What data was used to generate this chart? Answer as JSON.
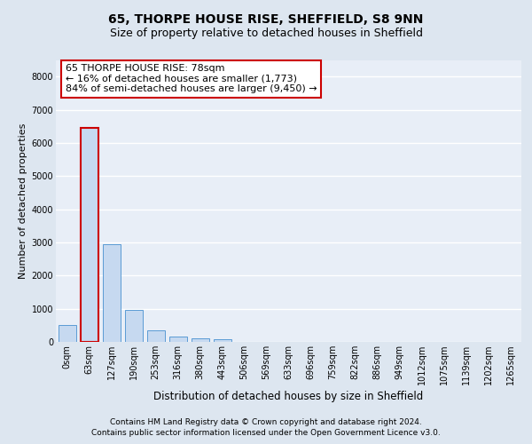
{
  "title1": "65, THORPE HOUSE RISE, SHEFFIELD, S8 9NN",
  "title2": "Size of property relative to detached houses in Sheffield",
  "xlabel": "Distribution of detached houses by size in Sheffield",
  "ylabel": "Number of detached properties",
  "bin_labels": [
    "0sqm",
    "63sqm",
    "127sqm",
    "190sqm",
    "253sqm",
    "316sqm",
    "380sqm",
    "443sqm",
    "506sqm",
    "569sqm",
    "633sqm",
    "696sqm",
    "759sqm",
    "822sqm",
    "886sqm",
    "949sqm",
    "1012sqm",
    "1075sqm",
    "1139sqm",
    "1202sqm",
    "1265sqm"
  ],
  "bar_heights": [
    500,
    6450,
    2950,
    975,
    340,
    165,
    100,
    80,
    0,
    0,
    0,
    0,
    0,
    0,
    0,
    0,
    0,
    0,
    0,
    0,
    0
  ],
  "highlight_bin": 1,
  "highlight_color": "#c6d9f0",
  "highlight_edge_color": "#cc0000",
  "normal_color": "#c6d9f0",
  "normal_edge_color": "#5b9bd5",
  "ylim": [
    0,
    8500
  ],
  "yticks": [
    0,
    1000,
    2000,
    3000,
    4000,
    5000,
    6000,
    7000,
    8000
  ],
  "annotation_text": "65 THORPE HOUSE RISE: 78sqm\n← 16% of detached houses are smaller (1,773)\n84% of semi-detached houses are larger (9,450) →",
  "annotation_box_color": "white",
  "annotation_box_edge_color": "#cc0000",
  "footer_line1": "Contains HM Land Registry data © Crown copyright and database right 2024.",
  "footer_line2": "Contains public sector information licensed under the Open Government Licence v3.0.",
  "background_color": "#dde6f0",
  "plot_background_color": "#e8eef7",
  "grid_color": "#ffffff",
  "title1_fontsize": 10,
  "title2_fontsize": 9,
  "xlabel_fontsize": 8.5,
  "ylabel_fontsize": 8,
  "tick_fontsize": 7,
  "annotation_fontsize": 8,
  "footer_fontsize": 6.5
}
